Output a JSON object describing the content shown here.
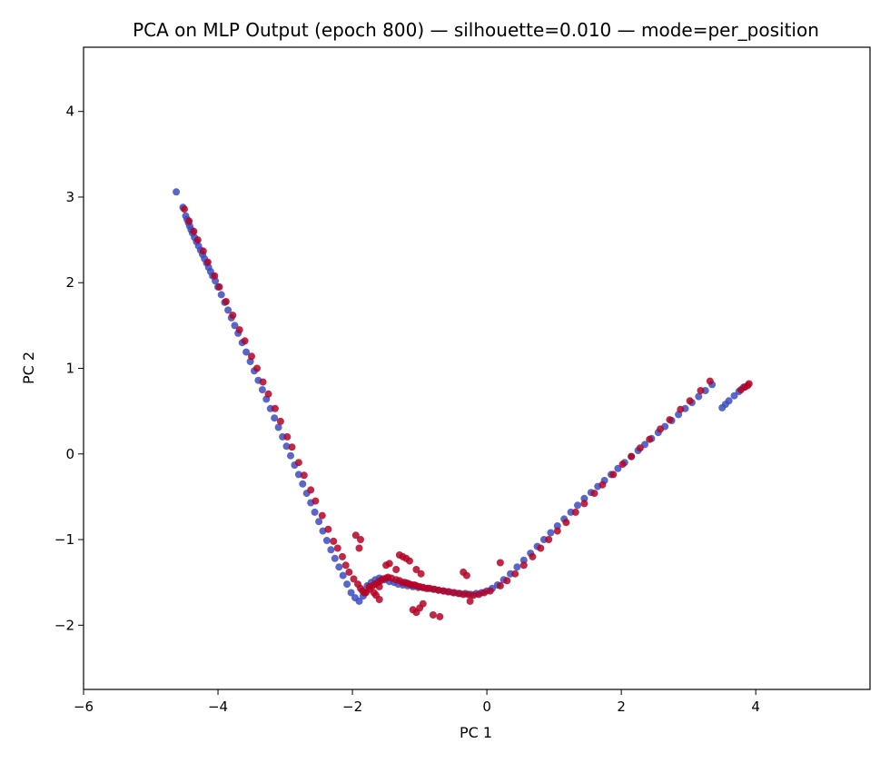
{
  "chart_data": {
    "type": "scatter",
    "title": "PCA on MLP Output (epoch 800) — silhouette=0.010 — mode=per_position",
    "xlabel": "PC 1",
    "ylabel": "PC 2",
    "xlim": [
      -6.0,
      5.7
    ],
    "ylim": [
      -2.75,
      4.75
    ],
    "xticks": [
      -6,
      -4,
      -2,
      0,
      2,
      4
    ],
    "xtick_labels": [
      "−6",
      "−4",
      "−2",
      "0",
      "2",
      "4"
    ],
    "yticks": [
      -2,
      -1,
      0,
      1,
      2,
      3,
      4
    ],
    "ytick_labels": [
      "−2",
      "−1",
      "0",
      "1",
      "2",
      "3",
      "4"
    ],
    "grid": false,
    "legend": "none",
    "colors": {
      "class_a": "#3b4cc0",
      "class_b": "#b40426"
    },
    "series": [
      {
        "color_key": "class_a",
        "x": [
          -4.62,
          -4.52,
          -4.48,
          -4.46,
          -4.44,
          -4.42,
          -4.4,
          -4.38,
          -4.35,
          -4.32,
          -4.29,
          -4.26,
          -4.23,
          -4.2,
          -4.17,
          -4.14,
          -4.11,
          -4.08,
          -4.04,
          -4.0,
          -3.95,
          -3.9,
          -3.85,
          -3.8,
          -3.75,
          -3.7,
          -3.64,
          -3.58,
          -3.52,
          -3.46,
          -3.4,
          -3.34,
          -3.28,
          -3.22,
          -3.16,
          -3.1,
          -3.04,
          -2.98,
          -2.92,
          -2.86,
          -2.8,
          -2.74,
          -2.68,
          -2.62,
          -2.56,
          -2.5,
          -2.44,
          -2.38,
          -2.32,
          -2.26,
          -2.2,
          -2.14,
          -2.08,
          -2.02,
          -1.96,
          -1.9,
          -1.84,
          -1.78,
          -1.72,
          -1.66,
          -1.6,
          -1.52,
          -1.45,
          -1.38,
          -1.32,
          -1.25,
          -1.18,
          -1.1,
          -1.02,
          -0.95,
          -0.88,
          -0.8,
          -0.72,
          -0.64,
          -0.56,
          -0.48,
          -0.4,
          -0.32,
          -0.24,
          -0.16,
          -0.08,
          0.0,
          0.08,
          0.16,
          0.25,
          0.35,
          0.45,
          0.55,
          0.65,
          0.75,
          0.85,
          0.95,
          1.05,
          1.15,
          1.25,
          1.35,
          1.45,
          1.55,
          1.65,
          1.75,
          1.85,
          1.95,
          2.05,
          2.15,
          2.25,
          2.35,
          2.45,
          2.55,
          2.65,
          2.75,
          2.85,
          2.95,
          3.05,
          3.15,
          3.25,
          3.35,
          3.5,
          3.55,
          3.6,
          3.68,
          3.75,
          3.82
        ],
        "y": [
          3.06,
          2.88,
          2.78,
          2.74,
          2.7,
          2.66,
          2.62,
          2.58,
          2.53,
          2.48,
          2.43,
          2.38,
          2.33,
          2.28,
          2.23,
          2.18,
          2.13,
          2.08,
          2.02,
          1.95,
          1.86,
          1.77,
          1.68,
          1.59,
          1.5,
          1.41,
          1.3,
          1.19,
          1.08,
          0.97,
          0.86,
          0.75,
          0.64,
          0.53,
          0.42,
          0.31,
          0.2,
          0.09,
          -0.02,
          -0.13,
          -0.24,
          -0.35,
          -0.46,
          -0.57,
          -0.68,
          -0.79,
          -0.9,
          -1.01,
          -1.12,
          -1.22,
          -1.32,
          -1.42,
          -1.52,
          -1.62,
          -1.68,
          -1.72,
          -1.66,
          -1.54,
          -1.5,
          -1.47,
          -1.45,
          -1.47,
          -1.49,
          -1.5,
          -1.52,
          -1.53,
          -1.54,
          -1.55,
          -1.56,
          -1.56,
          -1.57,
          -1.58,
          -1.59,
          -1.6,
          -1.61,
          -1.62,
          -1.63,
          -1.63,
          -1.64,
          -1.63,
          -1.62,
          -1.6,
          -1.57,
          -1.53,
          -1.47,
          -1.4,
          -1.32,
          -1.24,
          -1.16,
          -1.08,
          -1.0,
          -0.92,
          -0.84,
          -0.76,
          -0.68,
          -0.6,
          -0.52,
          -0.45,
          -0.38,
          -0.31,
          -0.24,
          -0.17,
          -0.1,
          -0.03,
          0.04,
          0.11,
          0.18,
          0.25,
          0.32,
          0.39,
          0.46,
          0.53,
          0.6,
          0.67,
          0.74,
          0.81,
          0.54,
          0.58,
          0.62,
          0.68,
          0.73,
          0.78
        ]
      },
      {
        "color_key": "class_b",
        "x": [
          -4.5,
          -4.43,
          -4.36,
          -4.3,
          -4.22,
          -4.15,
          -4.05,
          -3.98,
          -3.88,
          -3.78,
          -3.68,
          -3.6,
          -3.5,
          -3.42,
          -3.33,
          -3.25,
          -3.15,
          -3.07,
          -2.97,
          -2.9,
          -2.8,
          -2.72,
          -2.62,
          -2.55,
          -2.45,
          -2.36,
          -2.28,
          -2.22,
          -2.15,
          -2.1,
          -2.05,
          -1.98,
          -1.92,
          -1.88,
          -1.85,
          -1.82,
          -1.8,
          -1.74,
          -1.7,
          -1.66,
          -1.62,
          -1.58,
          -1.55,
          -1.5,
          -1.47,
          -1.42,
          -1.35,
          -1.3,
          -1.25,
          -1.22,
          -1.18,
          -1.15,
          -1.12,
          -1.08,
          -1.05,
          -1.0,
          -0.95,
          -0.9,
          -0.85,
          -0.78,
          -0.72,
          -0.65,
          -0.58,
          -0.5,
          -0.42,
          -0.35,
          -0.28,
          -0.2,
          -0.12,
          -0.04,
          0.05,
          0.2,
          0.3,
          0.42,
          0.55,
          0.68,
          0.8,
          0.92,
          1.05,
          1.18,
          1.32,
          1.45,
          1.6,
          1.72,
          1.88,
          2.02,
          2.15,
          2.28,
          2.42,
          2.58,
          2.72,
          2.88,
          3.02,
          3.18,
          3.32,
          3.78,
          3.84,
          3.88,
          3.9,
          -1.95,
          -1.88,
          -1.9,
          -1.6,
          -1.65,
          -1.3,
          -1.25,
          -1.2,
          -1.15,
          -1.05,
          -0.98,
          -0.35,
          -0.3,
          -1.1,
          -1.05,
          -1.0,
          -0.95,
          -0.8,
          -0.7,
          -0.25,
          0.2,
          -1.5,
          -1.45,
          -1.35,
          -1.6,
          -1.68,
          -1.75
        ],
        "y": [
          2.86,
          2.72,
          2.6,
          2.5,
          2.37,
          2.24,
          2.08,
          1.95,
          1.78,
          1.62,
          1.45,
          1.32,
          1.14,
          1.0,
          0.84,
          0.7,
          0.53,
          0.38,
          0.2,
          0.08,
          -0.1,
          -0.25,
          -0.42,
          -0.55,
          -0.72,
          -0.88,
          -1.02,
          -1.1,
          -1.2,
          -1.3,
          -1.38,
          -1.46,
          -1.52,
          -1.57,
          -1.6,
          -1.62,
          -1.62,
          -1.58,
          -1.54,
          -1.52,
          -1.5,
          -1.48,
          -1.46,
          -1.45,
          -1.44,
          -1.45,
          -1.47,
          -1.48,
          -1.5,
          -1.5,
          -1.51,
          -1.52,
          -1.53,
          -1.53,
          -1.54,
          -1.55,
          -1.56,
          -1.57,
          -1.57,
          -1.58,
          -1.59,
          -1.6,
          -1.61,
          -1.62,
          -1.63,
          -1.64,
          -1.64,
          -1.65,
          -1.64,
          -1.62,
          -1.6,
          -1.54,
          -1.48,
          -1.4,
          -1.3,
          -1.2,
          -1.1,
          -1.0,
          -0.9,
          -0.8,
          -0.68,
          -0.58,
          -0.46,
          -0.36,
          -0.24,
          -0.12,
          -0.03,
          0.07,
          0.17,
          0.29,
          0.4,
          0.52,
          0.62,
          0.74,
          0.85,
          0.75,
          0.78,
          0.8,
          0.82,
          -0.95,
          -1.0,
          -1.1,
          -1.55,
          -1.65,
          -1.18,
          -1.2,
          -1.22,
          -1.25,
          -1.35,
          -1.4,
          -1.38,
          -1.42,
          -1.82,
          -1.85,
          -1.8,
          -1.75,
          -1.88,
          -1.9,
          -1.72,
          -1.27,
          -1.3,
          -1.28,
          -1.35,
          -1.7,
          -1.62,
          -1.55
        ]
      }
    ]
  }
}
